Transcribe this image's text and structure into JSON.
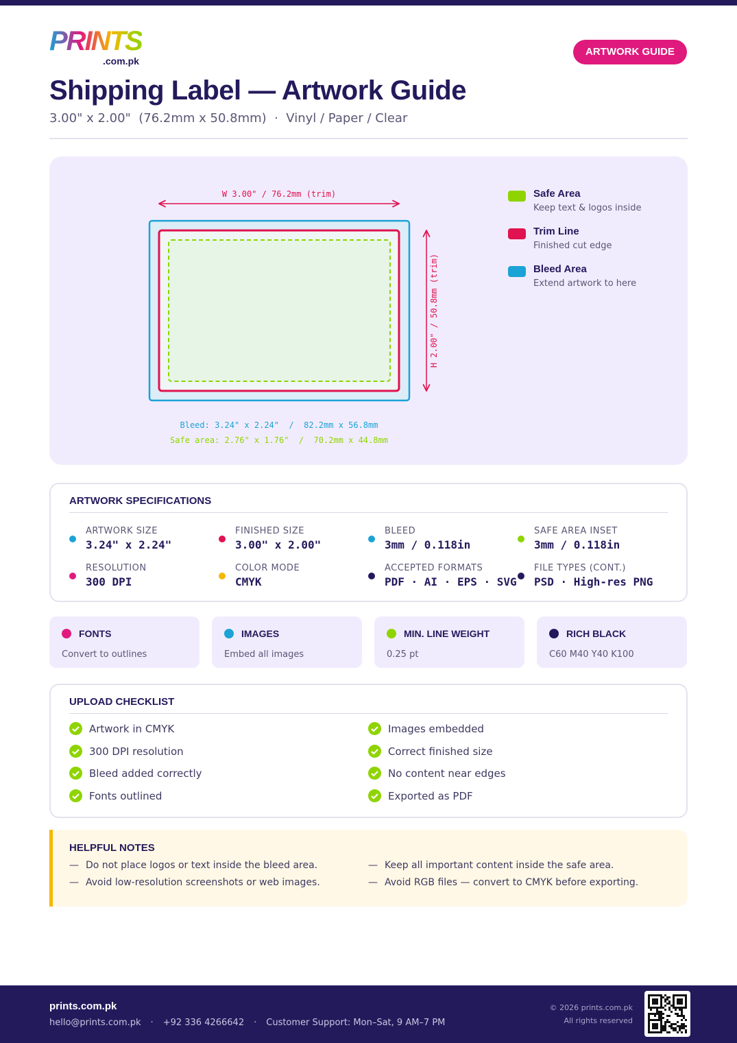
{
  "header": {
    "logo": "PRINTS",
    "logo_domain": ".com.pk",
    "badge": "ARTWORK GUIDE",
    "title": "Shipping Label — Artwork Guide",
    "subtitle": "3.00\" x 2.00\"  (76.2mm x 50.8mm)  ·  Vinyl / Paper / Clear"
  },
  "diagram": {
    "width_label": "W 3.00\" / 76.2mm (trim)",
    "height_label": "H 2.00\" / 50.8mm (trim)",
    "bleed_note": "Bleed: 3.24\" x 2.24\"  /  82.2mm x 56.8mm",
    "safe_note": "Safe area: 2.76\" x 1.76\"  /  70.2mm x 44.8mm",
    "legend": [
      {
        "title": "Safe Area",
        "desc": "Keep text & logos inside"
      },
      {
        "title": "Trim Line",
        "desc": "Finished cut edge"
      },
      {
        "title": "Bleed Area",
        "desc": "Extend artwork to here"
      }
    ]
  },
  "specs": {
    "title": "ARTWORK SPECIFICATIONS",
    "items": [
      {
        "label": "ARTWORK SIZE",
        "value": "3.24\" x 2.24\""
      },
      {
        "label": "FINISHED SIZE",
        "value": "3.00\" x 2.00\""
      },
      {
        "label": "BLEED",
        "value": "3mm / 0.118in"
      },
      {
        "label": "SAFE AREA INSET",
        "value": "3mm / 0.118in"
      },
      {
        "label": "RESOLUTION",
        "value": "300 DPI"
      },
      {
        "label": "COLOR MODE",
        "value": "CMYK"
      },
      {
        "label": "ACCEPTED FORMATS",
        "value": "PDF · AI · EPS · SVG"
      },
      {
        "label": "FILE TYPES (CONT.)",
        "value": "PSD · High-res PNG"
      }
    ]
  },
  "cards": [
    {
      "title": "FONTS",
      "desc": "Convert to outlines"
    },
    {
      "title": "IMAGES",
      "desc": "Embed all images"
    },
    {
      "title": "MIN. LINE WEIGHT",
      "desc": "0.25 pt"
    },
    {
      "title": "RICH BLACK",
      "desc": "C60 M40 Y40 K100"
    }
  ],
  "checklist": {
    "title": "UPLOAD CHECKLIST",
    "items": [
      "Artwork in CMYK",
      "300 DPI resolution",
      "Bleed added correctly",
      "Fonts outlined",
      "Images embedded",
      "Correct finished size",
      "No content near edges",
      "Exported as PDF"
    ]
  },
  "notes": {
    "title": "HELPFUL NOTES",
    "items": [
      "Do not place logos or text inside the bleed area.",
      "Avoid low-resolution screenshots or web images.",
      "Keep all important content inside the safe area.",
      "Avoid RGB files — convert to CMYK before exporting."
    ]
  },
  "footer": {
    "brand": "prints.com.pk",
    "email": "hello@prints.com.pk",
    "phone": "+92 336 4266642",
    "support": "Customer Support: Mon–Sat, 9 AM–7 PM",
    "copyright": "© 2026 prints.com.pk",
    "rights": "All rights reserved"
  }
}
